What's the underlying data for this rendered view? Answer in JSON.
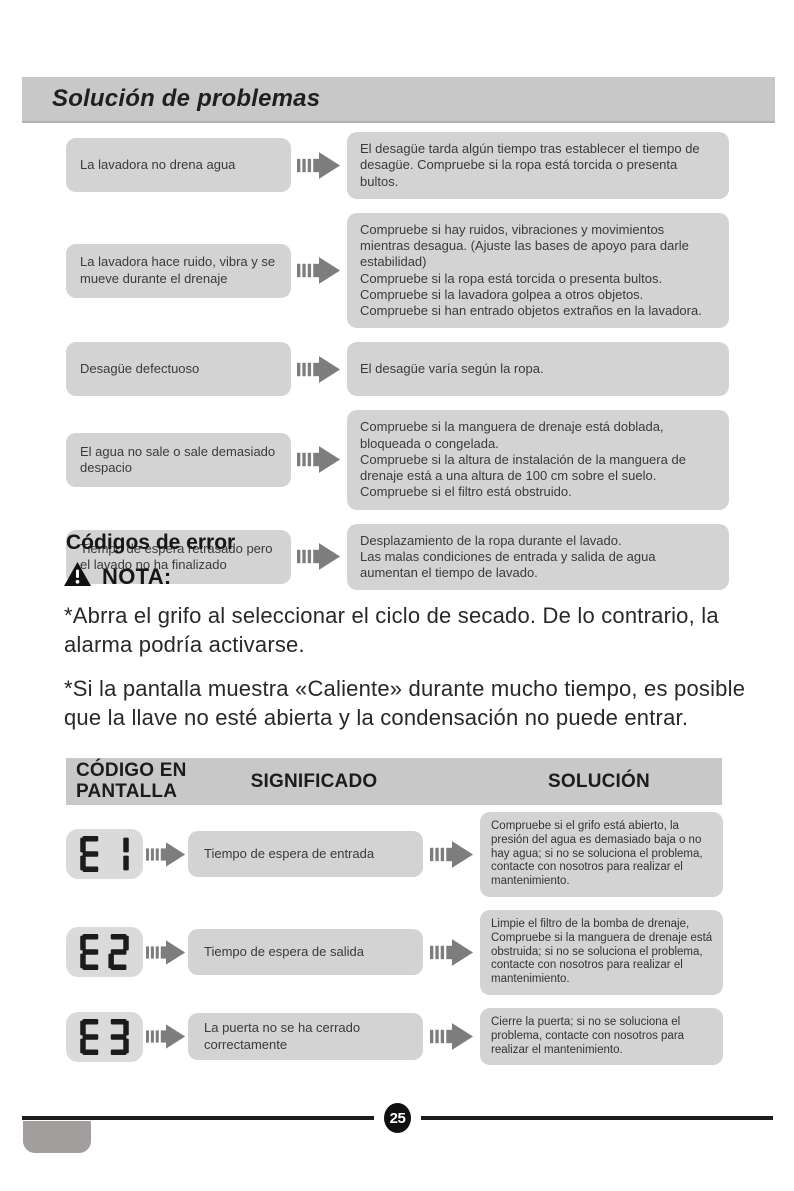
{
  "page": {
    "title": "Solución de problemas",
    "page_number": "25"
  },
  "colors": {
    "panel_gray": "#d3d3d3",
    "bar_gray": "#c8c8c8",
    "display_gray": "#dadada",
    "arrow_gray": "#7d7d7d",
    "footer_black": "#1c1c1c",
    "tab_gray": "#a29e9e"
  },
  "icons": {
    "arrow": "fast-forward-arrow-icon",
    "warning": "warning-triangle-icon"
  },
  "troubleshooting": {
    "rows": [
      {
        "problem": "La lavadora no drena agua",
        "solution": "El desagüe tarda algún tiempo tras establecer el tiempo de desagüe. Compruebe si la ropa está torcida o presenta bultos."
      },
      {
        "problem": "La lavadora hace ruido, vibra y se mueve durante el drenaje",
        "solution": "Compruebe si hay ruidos, vibraciones y movimientos mientras desagua. (Ajuste las bases de apoyo para darle estabilidad)\nCompruebe si la ropa está torcida o presenta bultos.\nCompruebe si la lavadora golpea a otros objetos.\nCompruebe si han entrado objetos extraños en la lavadora."
      },
      {
        "problem": "Desagüe defectuoso",
        "solution": "El desagüe varía según la ropa."
      },
      {
        "problem": "El agua no sale o sale demasiado despacio",
        "solution": "Compruebe si la manguera de drenaje está doblada, bloqueada o congelada.\nCompruebe si la altura de instalación de la manguera de drenaje está a una altura de 100 cm sobre el suelo.\nCompruebe si el filtro está obstruido."
      },
      {
        "problem": "Tiempo de espera retrasado pero el lavado no ha finalizado",
        "solution": "Desplazamiento de la ropa durante el lavado.\nLas malas condiciones de entrada y salida de agua aumentan el tiempo de lavado."
      }
    ]
  },
  "error_section": {
    "heading": "Códigos de error",
    "note_label": "NOTA:",
    "notes": [
      "*Abrra el grifo al seleccionar el ciclo de secado. De lo contrario, la alarma podría activarse.",
      "*Si la pantalla muestra «Caliente» durante mucho tiempo, es posible que la llave no esté abierta y la condensación no puede entrar."
    ],
    "table": {
      "header_code": "CÓDIGO EN PANTALLA",
      "header_meaning": "SIGNIFICADO",
      "header_solution": "SOLUCIÓN",
      "rows": [
        {
          "code": "E1",
          "meaning": "Tiempo de espera de entrada",
          "solution": "Compruebe si el grifo está abierto, la presión del agua es demasiado baja o no hay agua; si no se soluciona el problema, contacte con nosotros para realizar el mantenimiento."
        },
        {
          "code": "E2",
          "meaning": "Tiempo de espera de salida",
          "solution": "Limpie el filtro de la bomba de drenaje, Compruebe si la manguera de drenaje está obstruida; si no se soluciona el problema, contacte con nosotros para realizar el mantenimiento."
        },
        {
          "code": "E3",
          "meaning": "La puerta no se ha cerrado correctamente",
          "solution": "Cierre la puerta; si no se soluciona el problema, contacte con nosotros para realizar el mantenimiento."
        }
      ]
    }
  }
}
